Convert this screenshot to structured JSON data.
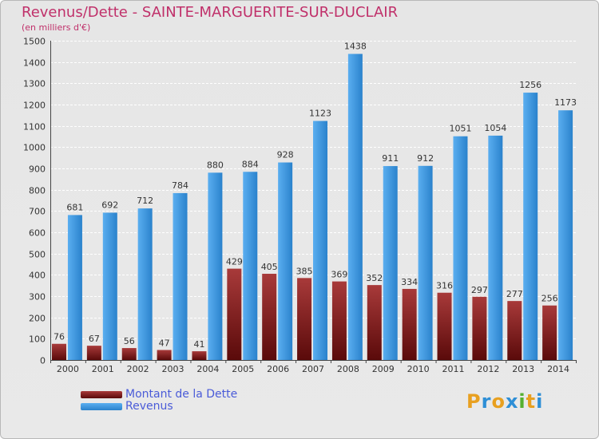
{
  "header": {
    "title": "Revenus/Dette - SAINTE-MARGUERITE-SUR-DUCLAIR",
    "subtitle": "(en milliers d'€)"
  },
  "colors": {
    "title": "#c0306a",
    "debt_top": "#a83a3a",
    "debt_bottom": "#5a0a0a",
    "revenue_top": "#5aaef0",
    "revenue_bottom": "#2a82cc",
    "legend_text": "#4a5bd8"
  },
  "chart_data": {
    "type": "bar",
    "title": "Revenus/Dette - SAINTE-MARGUERITE-SUR-DUCLAIR",
    "ylabel": "(en milliers d'€)",
    "xlabel": "",
    "ylim": [
      0,
      1500
    ],
    "yticks": [
      0,
      100,
      200,
      300,
      400,
      500,
      600,
      700,
      800,
      900,
      1000,
      1100,
      1200,
      1300,
      1400,
      1500
    ],
    "grid": true,
    "legend_position": "bottom-left",
    "categories": [
      "2000",
      "2001",
      "2002",
      "2003",
      "2004",
      "2005",
      "2006",
      "2007",
      "2008",
      "2009",
      "2010",
      "2011",
      "2012",
      "2013",
      "2014"
    ],
    "series": [
      {
        "name": "Montant de la Dette",
        "values": [
          76,
          67,
          56,
          47,
          41,
          429,
          405,
          385,
          369,
          352,
          334,
          316,
          297,
          277,
          256
        ]
      },
      {
        "name": "Revenus",
        "values": [
          681,
          692,
          712,
          784,
          880,
          884,
          928,
          1123,
          1438,
          911,
          912,
          1051,
          1054,
          1256,
          1173
        ]
      }
    ]
  },
  "legend": [
    {
      "label": "Montant de la Dette"
    },
    {
      "label": "Revenus"
    }
  ],
  "logo": {
    "letters": [
      "P",
      "r",
      "o",
      "x",
      "i",
      "t",
      "i"
    ],
    "colors": [
      "#e8a020",
      "#2e8fd6",
      "#e8a020",
      "#2e8fd6",
      "#55b030",
      "#e8a020",
      "#2e8fd6"
    ]
  }
}
